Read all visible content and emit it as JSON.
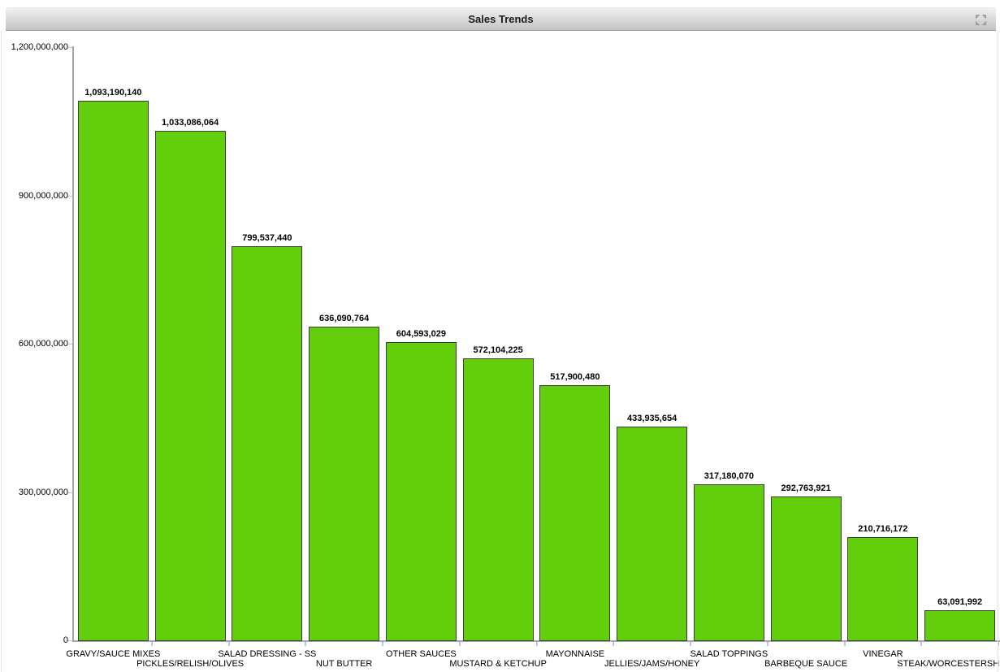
{
  "panel": {
    "title": "Sales Trends",
    "restore_icon": "restore-collapse-icon"
  },
  "chart_data": {
    "type": "bar",
    "title": "Sales Trends",
    "xlabel": "",
    "ylabel": "",
    "grid": false,
    "legend": "none",
    "ylim": [
      0,
      1200000000
    ],
    "bar_color": "#63CE0B",
    "bar_border_color": "#3d3d3d",
    "label_layout": "staggered-two-rows",
    "categories": [
      "GRAVY/SAUCE MIXES",
      "PICKLES/RELISH/OLIVES",
      "SALAD DRESSING - SS",
      "NUT BUTTER",
      "OTHER SAUCES",
      "MUSTARD & KETCHUP",
      "MAYONNAISE",
      "JELLIES/JAMS/HONEY",
      "SALAD TOPPINGS",
      "BARBEQUE SAUCE",
      "VINEGAR",
      "STEAK/WORCESTERSHIRE S"
    ],
    "values": [
      1093190140,
      1033086064,
      799537440,
      636090764,
      604593029,
      572104225,
      517900480,
      433935654,
      317180070,
      292763921,
      210716172,
      63091992
    ],
    "value_labels": [
      "1,093,190,140",
      "1,033,086,064",
      "799,537,440",
      "636,090,764",
      "604,593,029",
      "572,104,225",
      "517,900,480",
      "433,935,654",
      "317,180,070",
      "292,763,921",
      "210,716,172",
      "63,091,992"
    ],
    "yticks": [
      {
        "value": 0,
        "label": "0"
      },
      {
        "value": 300000000,
        "label": "300,000,000"
      },
      {
        "value": 600000000,
        "label": "600,000,000"
      },
      {
        "value": 900000000,
        "label": "900,000,000"
      },
      {
        "value": 1200000000,
        "label": "1,200,000,000"
      }
    ]
  }
}
